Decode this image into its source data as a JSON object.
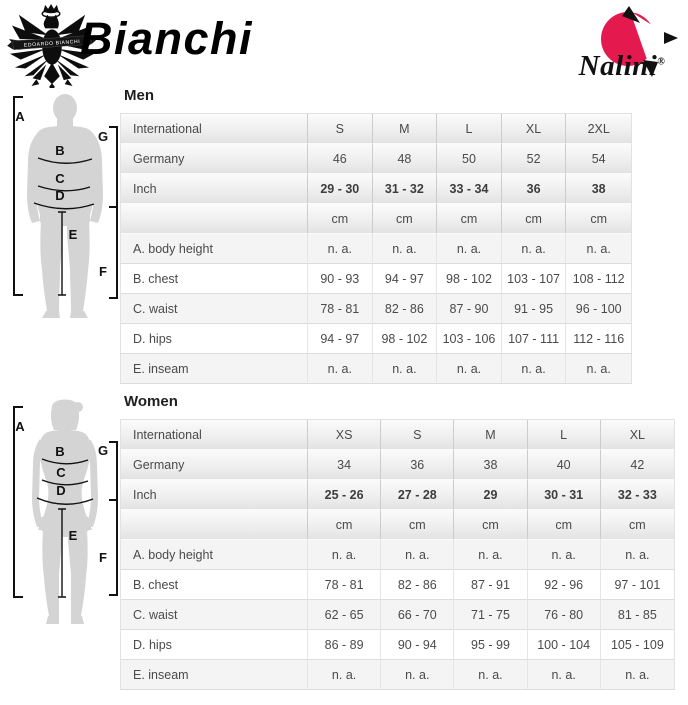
{
  "header": {
    "bianchi": {
      "wordmark": "Bianchi",
      "crest_banner": "EDOARDO BIANCHI"
    },
    "nalini": {
      "wordmark": "Nalini",
      "registered": "®"
    }
  },
  "colors": {
    "nalini_red": "#e41a4e",
    "silhouette": "#d4d4d4",
    "measure_line": "#111111"
  },
  "diagram": {
    "labels": {
      "a": "A",
      "b": "B",
      "c": "C",
      "d": "D",
      "e": "E",
      "f": "F",
      "g": "G"
    }
  },
  "men": {
    "heading": "Men",
    "table": {
      "size_rows": [
        {
          "label": "International",
          "values": [
            "S",
            "M",
            "L",
            "XL",
            "2XL"
          ]
        },
        {
          "label": "Germany",
          "values": [
            "46",
            "48",
            "50",
            "52",
            "54"
          ]
        },
        {
          "label": "Inch",
          "values": [
            "29 - 30",
            "31 - 32",
            "33 - 34",
            "36",
            "38"
          ]
        },
        {
          "label": "",
          "values": [
            "cm",
            "cm",
            "cm",
            "cm",
            "cm"
          ]
        }
      ],
      "measure_rows": [
        {
          "label": "A. body height",
          "values": [
            "n. a.",
            "n. a.",
            "n. a.",
            "n. a.",
            "n. a."
          ]
        },
        {
          "label": "B. chest",
          "values": [
            "90 - 93",
            "94 - 97",
            "98 - 102",
            "103 - 107",
            "108 - 112"
          ]
        },
        {
          "label": "C. waist",
          "values": [
            "78 - 81",
            "82 - 86",
            "87 - 90",
            "91 - 95",
            "96 - 100"
          ]
        },
        {
          "label": "D. hips",
          "values": [
            "94 - 97",
            "98 - 102",
            "103 - 106",
            "107 - 111",
            "112 - 116"
          ]
        },
        {
          "label": "E. inseam",
          "values": [
            "n. a.",
            "n. a.",
            "n. a.",
            "n. a.",
            "n. a."
          ]
        }
      ]
    }
  },
  "women": {
    "heading": "Women",
    "table": {
      "size_rows": [
        {
          "label": "International",
          "values": [
            "XS",
            "S",
            "M",
            "L",
            "XL"
          ]
        },
        {
          "label": "Germany",
          "values": [
            "34",
            "36",
            "38",
            "40",
            "42"
          ]
        },
        {
          "label": "Inch",
          "values": [
            "25 - 26",
            "27 - 28",
            "29",
            "30 - 31",
            "32 - 33"
          ]
        },
        {
          "label": "",
          "values": [
            "cm",
            "cm",
            "cm",
            "cm",
            "cm"
          ]
        }
      ],
      "measure_rows": [
        {
          "label": "A. body height",
          "values": [
            "n. a.",
            "n. a.",
            "n. a.",
            "n. a.",
            "n. a."
          ]
        },
        {
          "label": "B. chest",
          "values": [
            "78 - 81",
            "82 - 86",
            "87 - 91",
            "92 - 96",
            "97 - 101"
          ]
        },
        {
          "label": "C. waist",
          "values": [
            "62 - 65",
            "66 - 70",
            "71 - 75",
            "76 - 80",
            "81 - 85"
          ]
        },
        {
          "label": "D. hips",
          "values": [
            "86 - 89",
            "90 - 94",
            "95 - 99",
            "100 - 104",
            "105 - 109"
          ]
        },
        {
          "label": "E. inseam",
          "values": [
            "n. a.",
            "n. a.",
            "n. a.",
            "n. a.",
            "n. a."
          ]
        }
      ]
    }
  }
}
